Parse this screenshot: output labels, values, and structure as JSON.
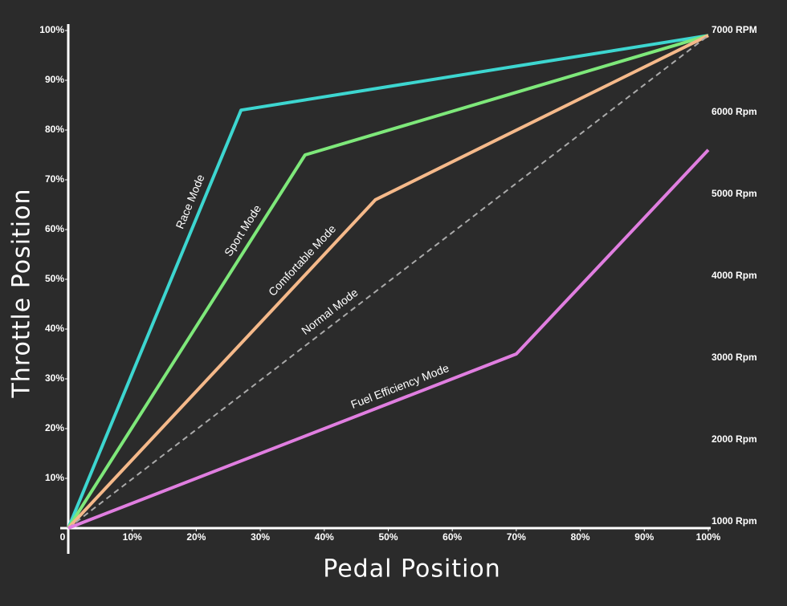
{
  "chart_data": {
    "type": "line",
    "x_label": "Pedal Position",
    "y_label": "Throttle Position",
    "xlim": [
      0,
      100
    ],
    "ylim": [
      0,
      100
    ],
    "y2lim": [
      920,
      7000
    ],
    "xticks": [
      0,
      {
        "value": 10,
        "label": "10%"
      },
      {
        "value": 20,
        "label": "20%"
      },
      {
        "value": 30,
        "label": "30%"
      },
      {
        "value": 40,
        "label": "40%"
      },
      {
        "value": 50,
        "label": "50%"
      },
      {
        "value": 60,
        "label": "60%"
      },
      {
        "value": 70,
        "label": "70%"
      },
      {
        "value": 80,
        "label": "80%"
      },
      {
        "value": 90,
        "label": "90%"
      },
      {
        "value": 100,
        "label": "100%"
      }
    ],
    "yticks": [
      {
        "value": 10,
        "label": "10%"
      },
      {
        "value": 20,
        "label": "20%"
      },
      {
        "value": 30,
        "label": "30%"
      },
      {
        "value": 40,
        "label": "40%"
      },
      {
        "value": 50,
        "label": "50%"
      },
      {
        "value": 60,
        "label": "60%"
      },
      {
        "value": 70,
        "label": "70%"
      },
      {
        "value": 80,
        "label": "80%"
      },
      {
        "value": 90,
        "label": "90%"
      },
      {
        "value": 100,
        "label": "100%"
      }
    ],
    "y2ticks": [
      {
        "value": 1000,
        "label": "1000 Rpm"
      },
      {
        "value": 2000,
        "label": "2000 Rpm"
      },
      {
        "value": 3000,
        "label": "3000 Rpm"
      },
      {
        "value": 4000,
        "label": "4000 Rpm"
      },
      {
        "value": 5000,
        "label": "5000 Rpm"
      },
      {
        "value": 6000,
        "label": "6000 Rpm"
      },
      {
        "value": 7000,
        "label": "7000 RPM"
      }
    ],
    "series": [
      {
        "name": "Race Mode",
        "color": "#3dd6d0",
        "x": [
          0,
          27,
          100
        ],
        "values": [
          0,
          84,
          99
        ]
      },
      {
        "name": "Sport Mode",
        "color": "#7ee87a",
        "x": [
          0,
          37,
          100
        ],
        "values": [
          0,
          75,
          99
        ]
      },
      {
        "name": "Comfortable Mode",
        "color": "#f5b98a",
        "x": [
          0,
          48,
          100
        ],
        "values": [
          0,
          66,
          99
        ]
      },
      {
        "name": "Normal Mode",
        "color": "#aaaaaa",
        "style": "dashed",
        "x": [
          0,
          100
        ],
        "values": [
          0,
          99
        ]
      },
      {
        "name": "Fuel Efficiency Mode",
        "color": "#e07ee0",
        "x": [
          0,
          70,
          100
        ],
        "values": [
          0,
          35,
          76
        ]
      }
    ]
  }
}
